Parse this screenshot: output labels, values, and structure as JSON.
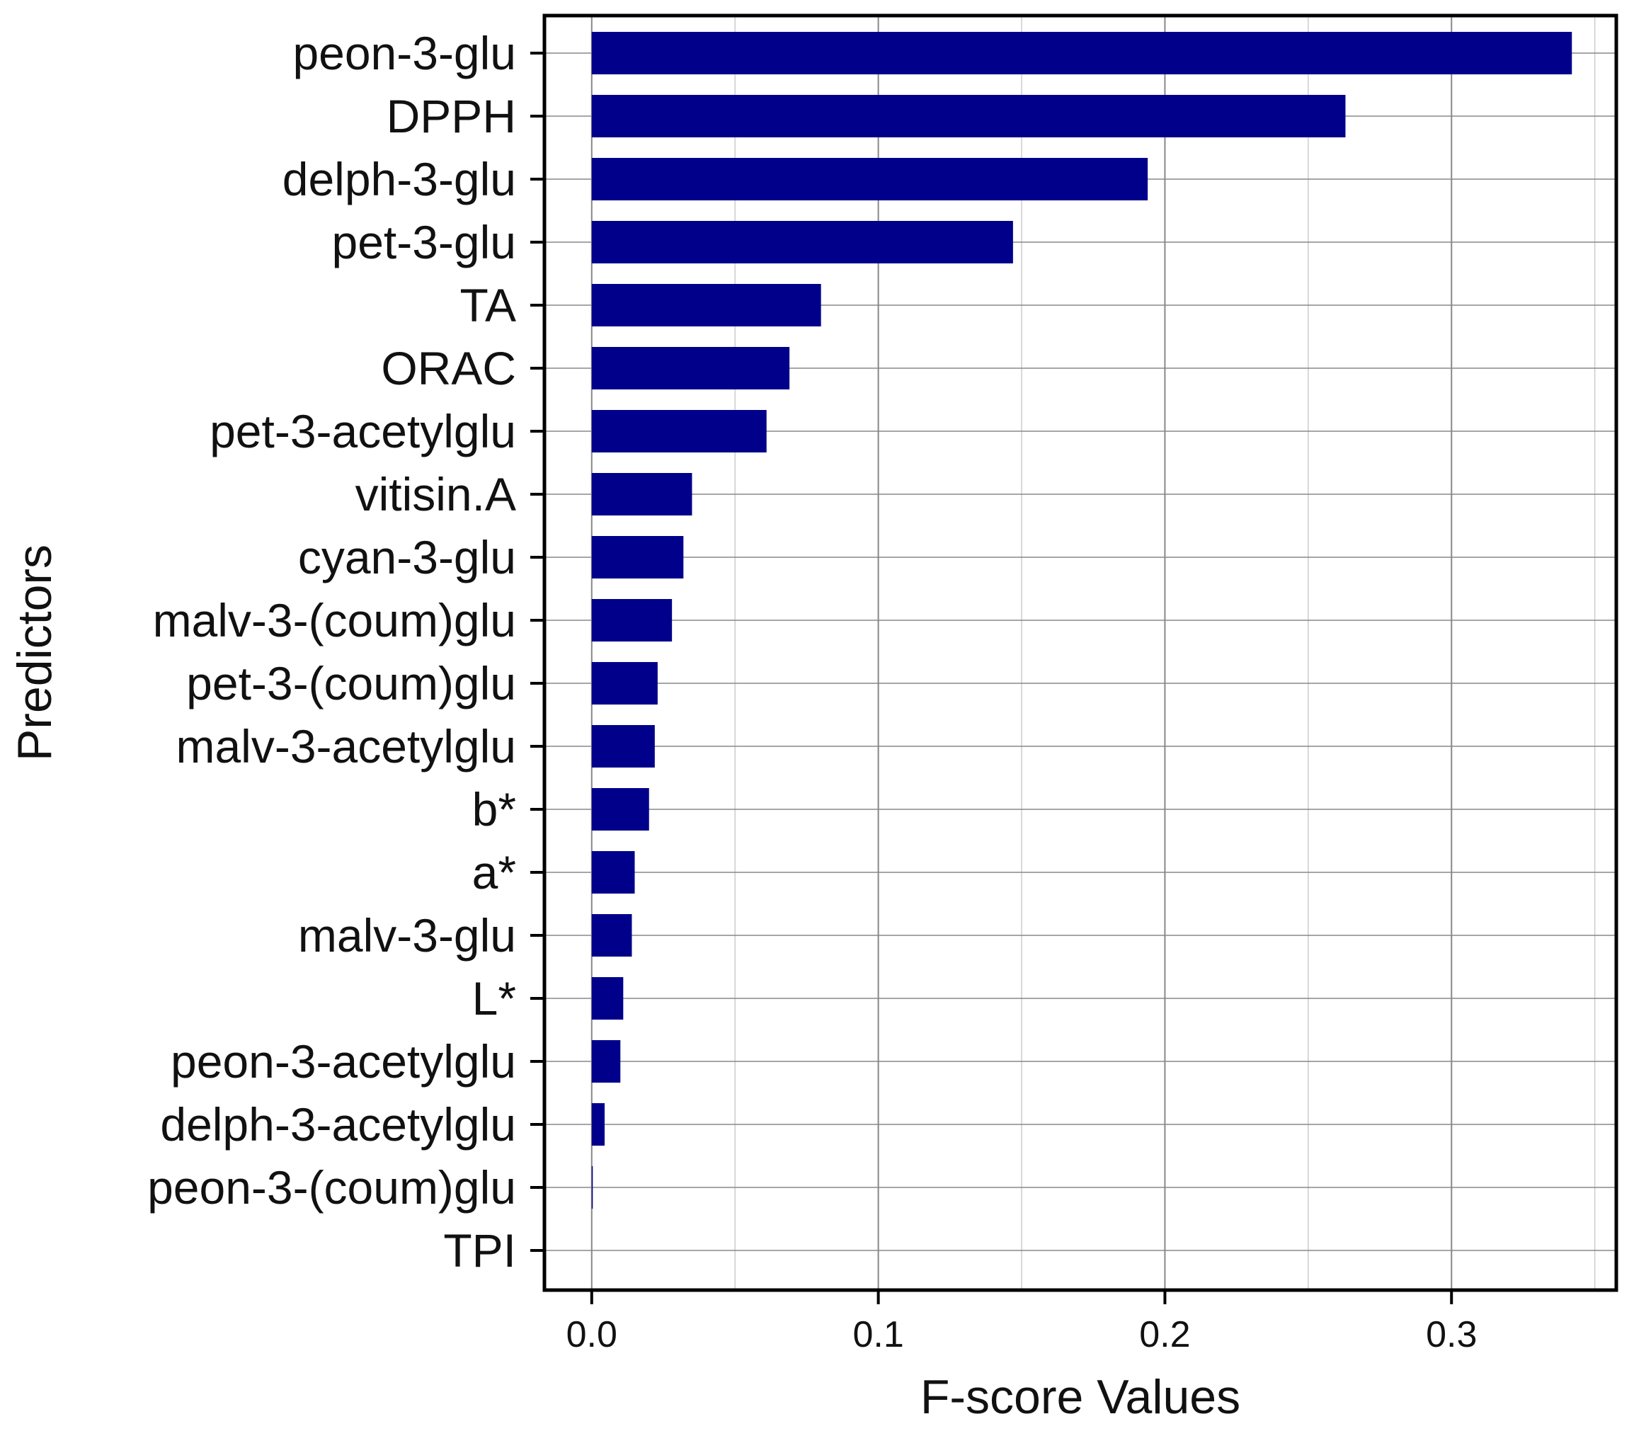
{
  "chart_data": {
    "type": "bar",
    "orientation": "horizontal",
    "categories": [
      "peon-3-glu",
      "DPPH",
      "delph-3-glu",
      "pet-3-glu",
      "TA",
      "ORAC",
      "pet-3-acetylglu",
      "vitisin.A",
      "cyan-3-glu",
      "malv-3-(coum)glu",
      "pet-3-(coum)glu",
      "malv-3-acetylglu",
      "b*",
      "a*",
      "malv-3-glu",
      "L*",
      "peon-3-acetylglu",
      "delph-3-acetylglu",
      "peon-3-(coum)glu",
      "TPI"
    ],
    "values": [
      0.342,
      0.263,
      0.194,
      0.147,
      0.08,
      0.069,
      0.061,
      0.035,
      0.032,
      0.028,
      0.023,
      0.022,
      0.02,
      0.015,
      0.014,
      0.011,
      0.01,
      0.0045,
      0.0003,
      0.0
    ],
    "xlabel": "F-score Values",
    "ylabel": "Predictors",
    "xlim": [
      -0.0165,
      0.3575
    ],
    "xticks": [
      0.0,
      0.1,
      0.2,
      0.3
    ],
    "xtick_labels": [
      "0.0",
      "0.1",
      "0.2",
      "0.3"
    ],
    "grid": true,
    "bar_color": "#00008b",
    "grid_color": "#888888"
  }
}
